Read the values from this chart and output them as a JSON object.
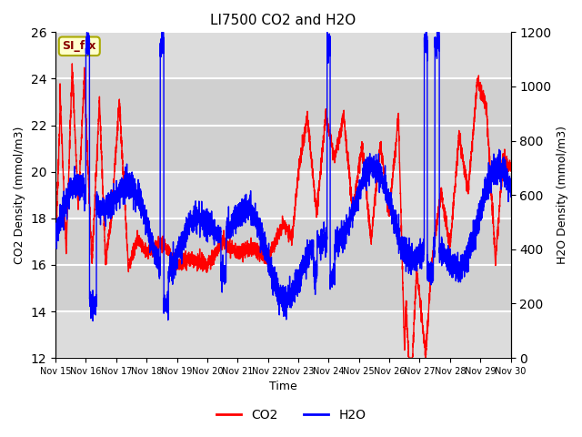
{
  "title": "LI7500 CO2 and H2O",
  "xlabel": "Time",
  "ylabel_left": "CO2 Density (mmol/m3)",
  "ylabel_right": "H2O Density (mmol/m3)",
  "xlim_days": 15,
  "ylim_left": [
    12,
    26
  ],
  "ylim_right": [
    0,
    1200
  ],
  "yticks_left": [
    12,
    14,
    16,
    18,
    20,
    22,
    24,
    26
  ],
  "yticks_right": [
    0,
    200,
    400,
    600,
    800,
    1000,
    1200
  ],
  "xtick_labels": [
    "Nov 15",
    "Nov 16",
    "Nov 17",
    "Nov 18",
    "Nov 19",
    "Nov 20",
    "Nov 21",
    "Nov 22",
    "Nov 23",
    "Nov 24",
    "Nov 25",
    "Nov 26",
    "Nov 27",
    "Nov 28",
    "Nov 29",
    "Nov 30"
  ],
  "co2_color": "red",
  "h2o_color": "blue",
  "line_width": 1.0,
  "plot_bg_color": "#dcdcdc",
  "grid_color": "white",
  "annotation_text": "SI_flx",
  "annotation_facecolor": "#ffffcc",
  "annotation_edgecolor": "#aaaa00",
  "annotation_textcolor": "#8b0000",
  "figsize": [
    6.4,
    4.8
  ],
  "dpi": 100
}
